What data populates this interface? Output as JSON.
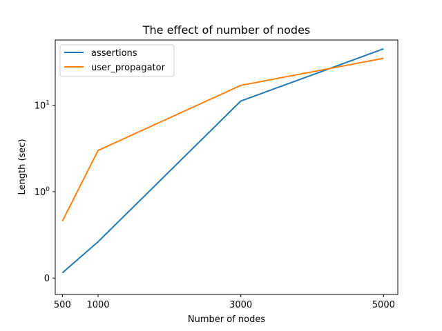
{
  "chart_data": {
    "type": "line",
    "title": "The effect of number of nodes",
    "xlabel": "Number of nodes",
    "ylabel": "Length (sec)",
    "xlim": [
      400,
      5200
    ],
    "yscale": "symlog",
    "ylim": [
      -0.19,
      57
    ],
    "x_ticks": [
      {
        "value": 500,
        "label": "500"
      },
      {
        "value": 1000,
        "label": "1000"
      },
      {
        "value": 3000,
        "label": "3000"
      },
      {
        "value": 5000,
        "label": "5000"
      }
    ],
    "y_ticks": [
      {
        "value": 0,
        "label": "0",
        "base": "0",
        "exp": ""
      },
      {
        "value": 1,
        "label": "10^0",
        "base": "10",
        "exp": "0"
      },
      {
        "value": 10,
        "label": "10^1",
        "base": "10",
        "exp": "1"
      }
    ],
    "grid": false,
    "legend_position": "upper left",
    "x": [
      500,
      1000,
      3000,
      5000
    ],
    "series": [
      {
        "name": "assertions",
        "color": "#1f77b4",
        "values": [
          0.06,
          0.42,
          11.2,
          45
        ]
      },
      {
        "name": "user_propagator",
        "color": "#ff7f0e",
        "values": [
          0.66,
          3.0,
          17,
          35
        ]
      }
    ]
  }
}
